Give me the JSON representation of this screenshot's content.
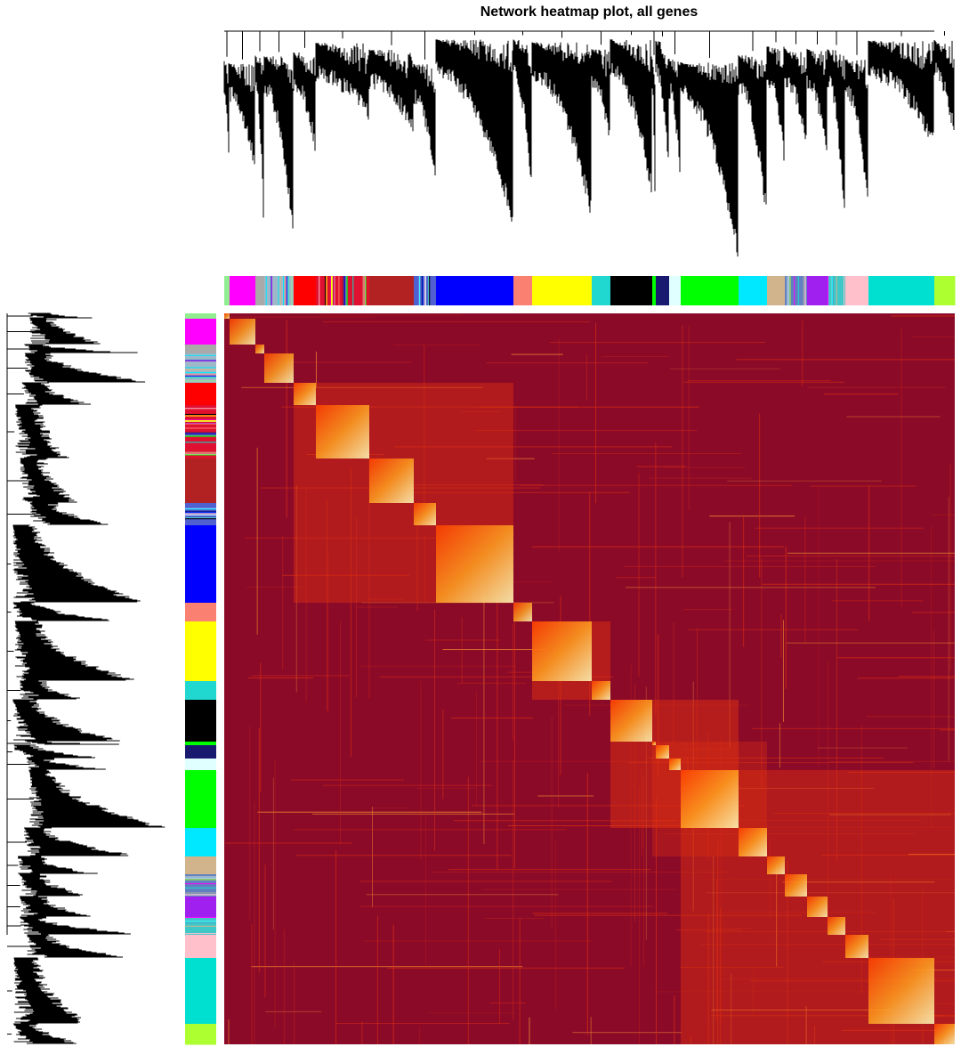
{
  "chart_data": {
    "type": "heatmap",
    "title": "Network heatmap plot, all genes",
    "module_colors": [
      "#90ee90",
      "#ff00ff",
      "#a9a9a9",
      "#9fb8c8",
      "#ff0000",
      "#e01030",
      "#b22222",
      "#5060d0",
      "#0000ff",
      "#fa8072",
      "#ffff00",
      "#20d8d0",
      "#000000",
      "#00ff00",
      "#191970",
      "#e0ffff",
      "#00ff00",
      "#00e8ff",
      "#d2b48c",
      "#6080c0",
      "#a020f0",
      "#40c8c8",
      "#ffc0cb",
      "#00e0d0",
      "#adff2f"
    ],
    "background_color": "#8b0a28"
  }
}
